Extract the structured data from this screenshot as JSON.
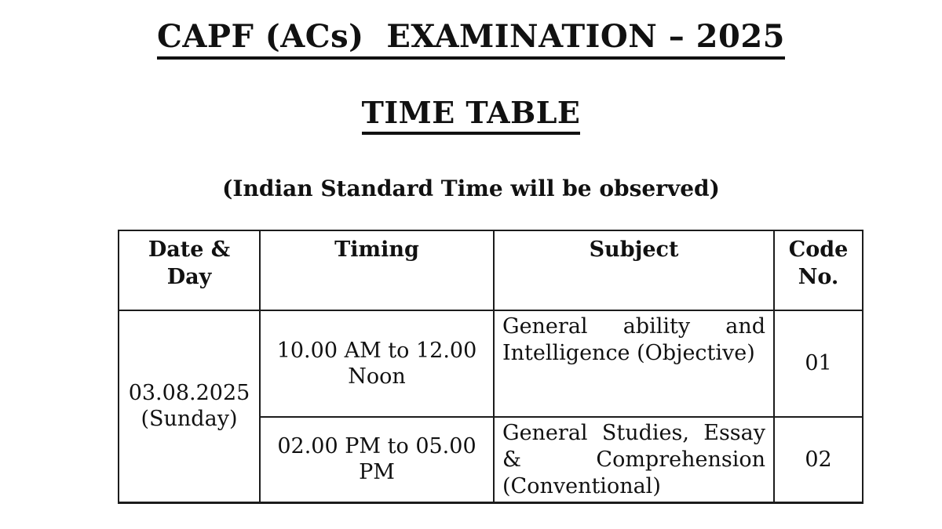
{
  "page": {
    "title": "CAPF (ACs)  EXAMINATION – 2025",
    "heading": "TIME TABLE",
    "note": "(Indian Standard Time will be observed)"
  },
  "timetable": {
    "headers": {
      "date_day": "Date &\nDay",
      "timing": "Timing",
      "subject": "Subject",
      "code_no": "Code\nNo."
    },
    "date_day": "03.08.2025\n(Sunday)",
    "sessions": [
      {
        "timing": "10.00 AM to 12.00\nNoon",
        "subject": "General ability and Intelligence (Objective)",
        "code": "01"
      },
      {
        "timing": "02.00 PM to 05.00\nPM",
        "subject": "General Studies, Essay & Comprehension (Conventional)",
        "code": "02"
      }
    ]
  }
}
